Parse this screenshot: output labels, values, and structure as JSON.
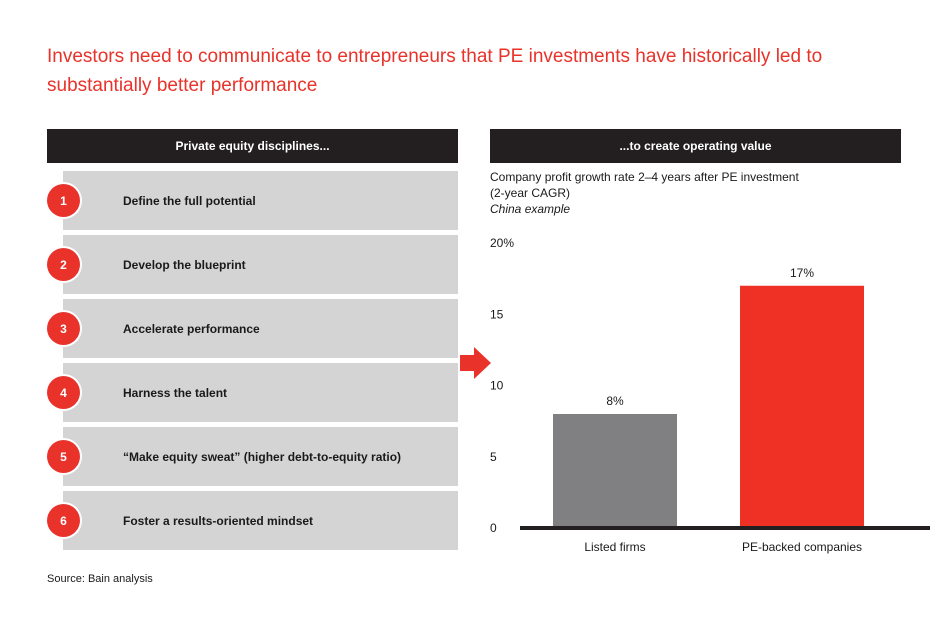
{
  "headline": "Investors need to communicate to entrepreneurs that PE investments have historically led to substantially better performance",
  "left_panel": {
    "header": "Private equity disciplines...",
    "steps": [
      {
        "number": "1",
        "label": "Define the full potential"
      },
      {
        "number": "2",
        "label": "Develop the blueprint"
      },
      {
        "number": "3",
        "label": "Accelerate performance"
      },
      {
        "number": "4",
        "label": "Harness the talent"
      },
      {
        "number": "5",
        "label": "“Make equity sweat” (higher debt-to-equity ratio)"
      },
      {
        "number": "6",
        "label": "Foster a results-oriented mindset"
      }
    ]
  },
  "arrow_icon": "right-arrow-icon",
  "right_panel": {
    "header": "...to create operating value",
    "subtitle_line1": "Company profit growth rate 2–4 years after PE investment",
    "subtitle_line2": "(2-year CAGR)",
    "subtitle_line3": "China example"
  },
  "chart_data": {
    "type": "bar",
    "categories": [
      "Listed firms",
      "PE-backed companies"
    ],
    "values": [
      8,
      17
    ],
    "data_labels": [
      "8%",
      "17%"
    ],
    "colors": [
      "#808083",
      "#ee3124"
    ],
    "ylim": [
      0,
      20
    ],
    "yticks": [
      0,
      5,
      10,
      15,
      20
    ],
    "ytick_labels": [
      "0",
      "5",
      "10",
      "15",
      "20%"
    ],
    "grid": false,
    "legend": "none"
  },
  "source": "Source: Bain analysis",
  "colors": {
    "accent_red": "#e8322a",
    "header_dark": "#231f20",
    "row_gray": "#d4d4d5"
  }
}
